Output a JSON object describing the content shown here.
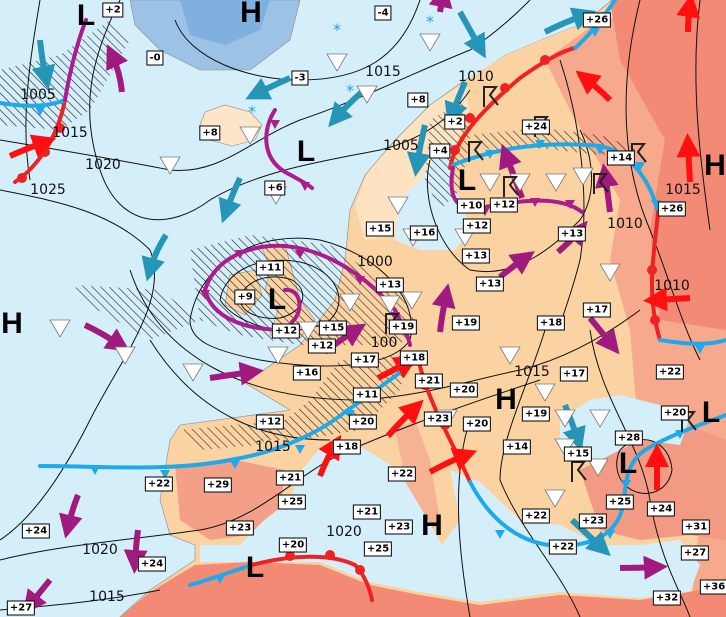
{
  "colors": {
    "sea": "#d4eefa",
    "land": "#fbd3a2",
    "land_warm": "#f6a98c",
    "land_hot": "#f28a76",
    "ice": "#9cc3e6",
    "cold_front": "#1eaaea",
    "warm_front": "#ee2222",
    "occluded_front": "#aa1d8c",
    "cold_advection_arrow": "#2596b8",
    "warm_advection_arrow": "#ff1010",
    "maritime_arrow": "#a01a80"
  },
  "symbols": [
    "shower-triangle",
    "snow-asterisk",
    "thunderstorm",
    "precipitation-hatching"
  ],
  "temperature_labels": [
    "+2",
    "-4",
    "+26",
    "-0",
    "-3",
    "+8",
    "+8",
    "+2",
    "+24",
    "+4",
    "+14",
    "+6",
    "+10",
    "+12",
    "+12",
    "+26",
    "+15",
    "+16",
    "+13",
    "+13",
    "+11",
    "+13",
    "+13",
    "+9",
    "+19",
    "+12",
    "+15",
    "+12",
    "+19",
    "+18",
    "+17",
    "+17",
    "+16",
    "+18",
    "+22",
    "+21",
    "+20",
    "+17",
    "+11",
    "+19",
    "+12",
    "+20",
    "+23",
    "+20",
    "+20",
    "+28",
    "+14",
    "+18",
    "+15",
    "+22",
    "+29",
    "+21",
    "+22",
    "+25",
    "+25",
    "+24",
    "+31",
    "+21",
    "+22",
    "+23",
    "+23",
    "+23",
    "+24",
    "+22",
    "+20",
    "+25",
    "+24",
    "+27",
    "+36",
    "+32",
    "+27"
  ],
  "isobar_labels": [
    "1005",
    "1015",
    "1020",
    "1025",
    "1015",
    "1010",
    "1005",
    "1010",
    "1015",
    "1010",
    "1000",
    "1015",
    "1015",
    "1020",
    "1015",
    "1020",
    "100"
  ],
  "pressure_centers": [
    "L",
    "H",
    "L",
    "H",
    "L",
    "L",
    "H",
    "H",
    "L",
    "L",
    "H",
    "L"
  ]
}
